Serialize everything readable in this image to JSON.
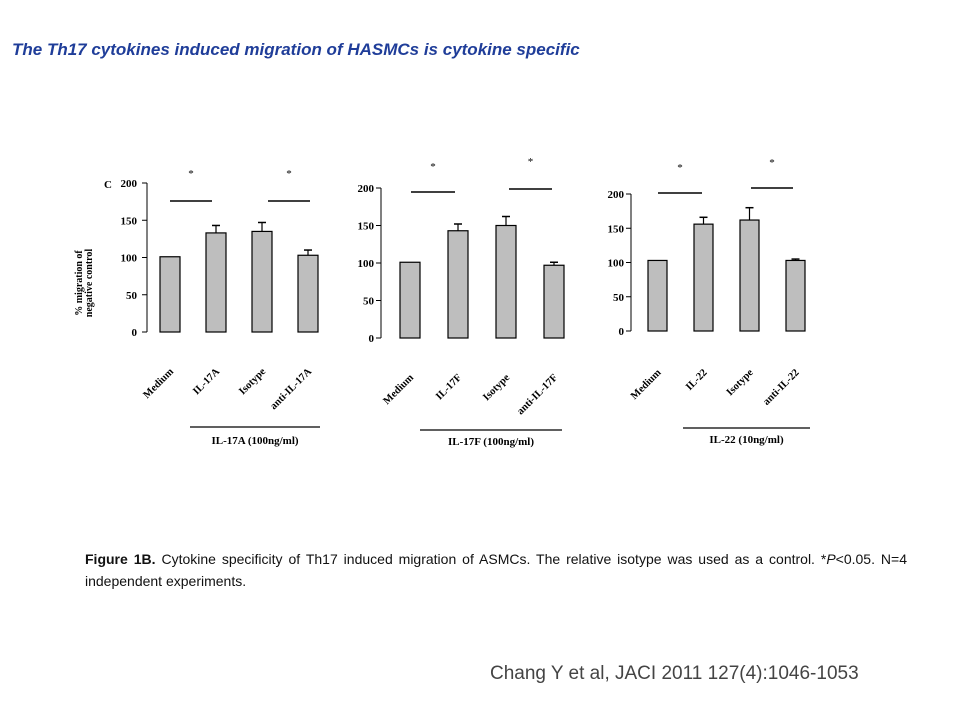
{
  "slide_title": "The Th17 cytokines induced migration of HASMCs is cytokine specific",
  "caption": {
    "label": "Figure 1B.",
    "text_before_p": " Cytokine specificity of Th17 induced migration of ASMCs. The relative isotype was used as a control. *",
    "p_symbol": "P",
    "text_after_p": "<0.05. N=4 independent experiments."
  },
  "citation": "Chang Y et al, JACI 2011 127(4):1046-1053",
  "colors": {
    "bar_fill": "#bebebe",
    "bar_stroke": "#000000",
    "title": "#1f3d99"
  },
  "chart_data": [
    {
      "type": "bar",
      "panel_letter": "C",
      "ylabel": "% migration of negative control",
      "ylim": [
        0,
        200
      ],
      "yticks": [
        0,
        50,
        100,
        150,
        200
      ],
      "categories": [
        "Medium",
        "IL-17A",
        "Isotype",
        "anti-IL-17A"
      ],
      "values": [
        101,
        133,
        135,
        103
      ],
      "errors": [
        0,
        10,
        12,
        7
      ],
      "significance": [
        {
          "between": [
            0,
            1
          ],
          "label": "*"
        },
        {
          "between": [
            2,
            3
          ],
          "label": "*"
        }
      ],
      "treatment_label": "IL-17A (100ng/ml)"
    },
    {
      "type": "bar",
      "ylabel": "",
      "ylim": [
        0,
        200
      ],
      "yticks": [
        0,
        50,
        100,
        150,
        200
      ],
      "categories": [
        "Medium",
        "IL-17F",
        "Isotype",
        "anti-IL-17F"
      ],
      "values": [
        101,
        143,
        150,
        97
      ],
      "errors": [
        0,
        9,
        12,
        4
      ],
      "significance": [
        {
          "between": [
            0,
            1
          ],
          "label": "*"
        },
        {
          "between": [
            2,
            3
          ],
          "label": "*"
        }
      ],
      "treatment_label": "IL-17F (100ng/ml)"
    },
    {
      "type": "bar",
      "ylabel": "",
      "ylim": [
        0,
        200
      ],
      "yticks": [
        0,
        50,
        100,
        150,
        200
      ],
      "categories": [
        "Medium",
        "IL-22",
        "Isotype",
        "anti-IL-22"
      ],
      "values": [
        103,
        156,
        162,
        103
      ],
      "errors": [
        0,
        10,
        18,
        2
      ],
      "significance": [
        {
          "between": [
            0,
            1
          ],
          "label": "*"
        },
        {
          "between": [
            2,
            3
          ],
          "label": "*"
        }
      ],
      "treatment_label": "IL-22 (10ng/ml)"
    }
  ]
}
